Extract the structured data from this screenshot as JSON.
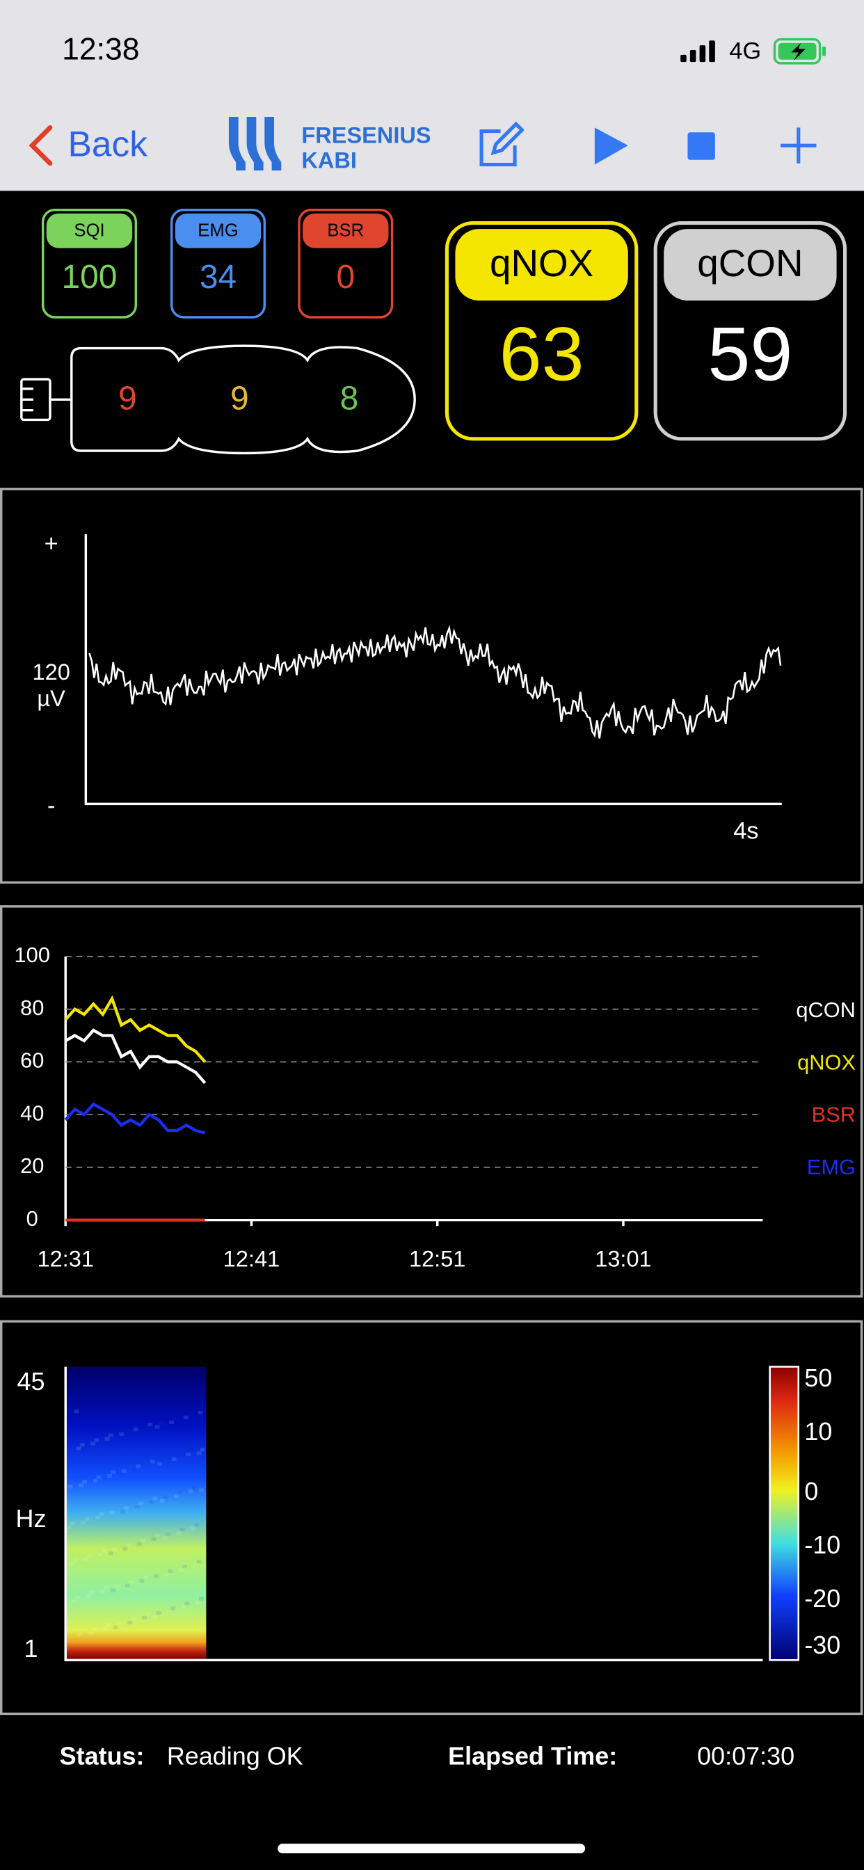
{
  "status_bar": {
    "time": "12:38",
    "network": "4G"
  },
  "nav": {
    "back": "Back",
    "brand": [
      "FRESENIUS",
      "KABI"
    ]
  },
  "indicators": [
    {
      "label": "SQI",
      "value": 100,
      "color": "#7bd35c"
    },
    {
      "label": "EMG",
      "value": 34,
      "color": "#4a8ef0"
    },
    {
      "label": "BSR",
      "value": 0,
      "color": "#e0452e"
    }
  ],
  "sensor": [
    {
      "value": 9,
      "color": "#e0452e"
    },
    {
      "value": 9,
      "color": "#e8b830"
    },
    {
      "value": 8,
      "color": "#6cc35a"
    }
  ],
  "indices": [
    {
      "label": "qNOX",
      "value": 63,
      "color": "#f5e600",
      "text_color": "#f5e600"
    },
    {
      "label": "qCON",
      "value": 59,
      "color": "#d0d0d0",
      "text_color": "#ffffff"
    }
  ],
  "eeg": {
    "plus": "+",
    "scale": [
      "120",
      "µV"
    ],
    "minus": "-",
    "time": "4s"
  },
  "chart_data": {
    "type": "line",
    "x": [
      0,
      0.5,
      1,
      1.5,
      2,
      2.5,
      3,
      3.5,
      4,
      4.5,
      5,
      5.5,
      6,
      6.5,
      7,
      7.5
    ],
    "series": [
      {
        "name": "qCON",
        "color": "#ffffff",
        "values": [
          68,
          70,
          68,
          72,
          70,
          70,
          62,
          64,
          58,
          62,
          62,
          60,
          60,
          58,
          56,
          52
        ]
      },
      {
        "name": "qNOX",
        "color": "#f5e600",
        "values": [
          76,
          80,
          78,
          82,
          78,
          84,
          74,
          76,
          72,
          74,
          72,
          70,
          70,
          66,
          64,
          60
        ]
      },
      {
        "name": "BSR",
        "color": "#e0302a",
        "values": [
          0,
          0,
          0,
          0,
          0,
          0,
          0,
          0,
          0,
          0,
          0,
          0,
          0,
          0,
          0,
          0
        ]
      },
      {
        "name": "EMG",
        "color": "#1a2ef0",
        "values": [
          38,
          42,
          40,
          44,
          42,
          40,
          36,
          38,
          36,
          40,
          38,
          34,
          34,
          36,
          34,
          33
        ]
      }
    ],
    "xlim": [
      0,
      37.5
    ],
    "xticks": [
      {
        "value": 0,
        "label": "12:31"
      },
      {
        "value": 10,
        "label": "12:41"
      },
      {
        "value": 20,
        "label": "12:51"
      },
      {
        "value": 30,
        "label": "13:01"
      }
    ],
    "ylim": [
      0,
      100
    ],
    "yticks": [
      0,
      20,
      40,
      60,
      80,
      100
    ],
    "grid": true
  },
  "spectrogram": {
    "y_labels": [
      "45",
      "Hz",
      "1"
    ],
    "colorbar_labels": [
      50,
      10,
      0,
      -10,
      -20,
      -30
    ]
  },
  "footer": {
    "status_label": "Status:",
    "status": "Reading OK",
    "elapsed_label": "Elapsed Time:",
    "elapsed": "00:07:30"
  }
}
